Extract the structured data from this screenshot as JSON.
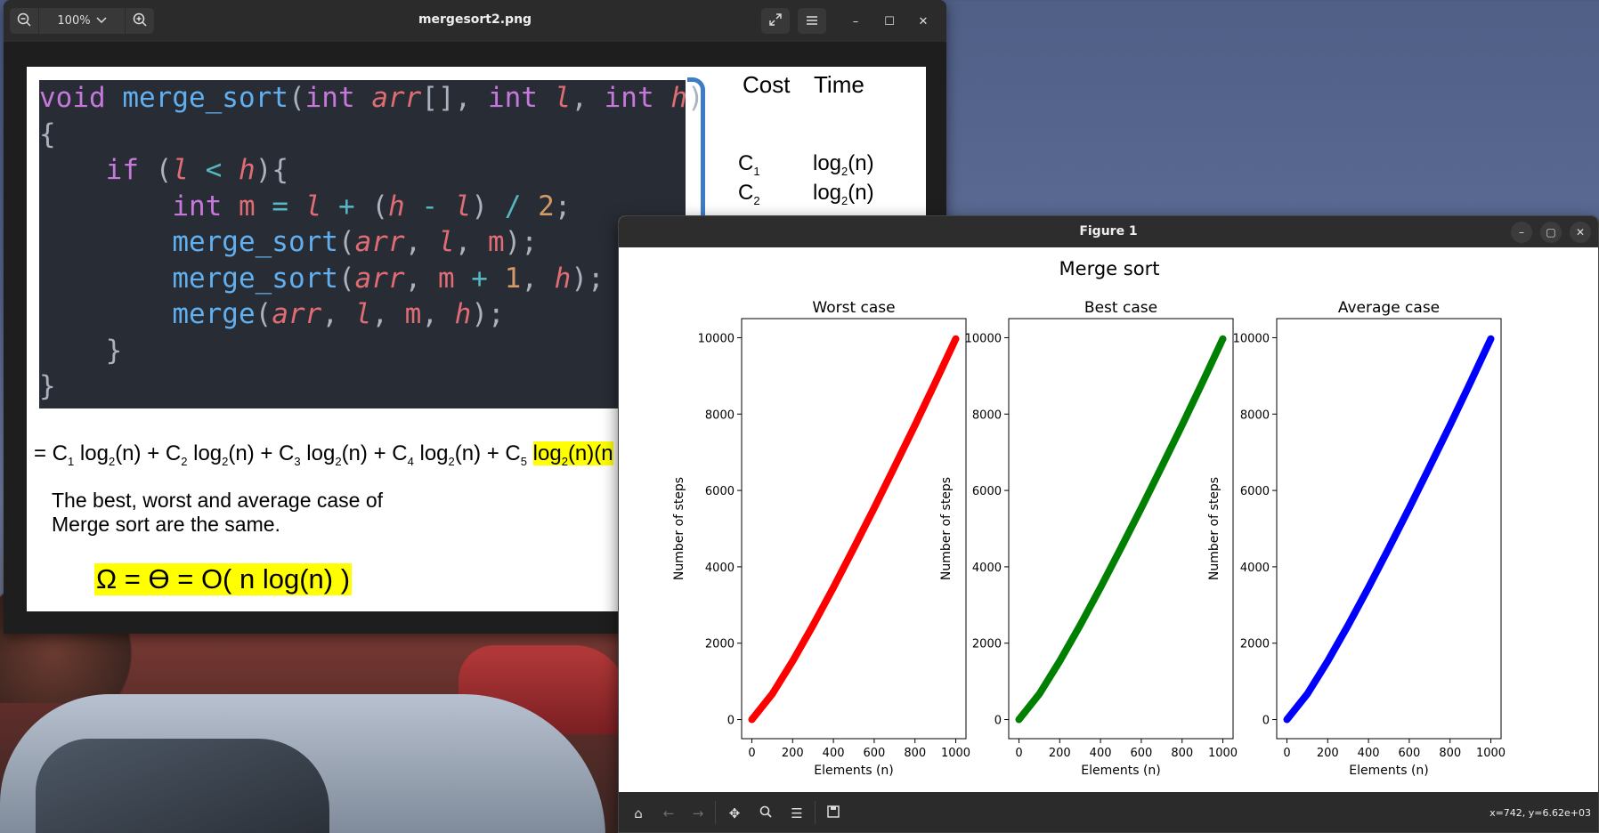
{
  "viewer": {
    "title": "mergesort2.png",
    "zoom": "100%",
    "icons": {
      "zoom_out": "zoom-out-icon",
      "zoom_in": "zoom-in-icon",
      "fullscreen": "fullscreen-icon",
      "menu": "hamburger-menu-icon"
    }
  },
  "slide": {
    "cost_header": "Cost",
    "time_header": "Time",
    "cost_rows": [
      {
        "c": "C",
        "sub": "1",
        "t": "log",
        "tsub": "2",
        "tend": "(n)"
      },
      {
        "c": "C",
        "sub": "2",
        "t": "log",
        "tsub": "2",
        "tend": "(n)"
      }
    ],
    "sum_line": {
      "start": "= C",
      "parts": [
        {
          "sub": "1",
          "text": " log"
        },
        {
          "sub": "2",
          "text": "(n) + C"
        },
        {
          "sub": "2",
          "text": " log"
        },
        {
          "sub": "2",
          "text": "(n) + C"
        },
        {
          "sub": "3",
          "text": " log"
        },
        {
          "sub": "2",
          "text": "(n) + C"
        },
        {
          "sub": "4",
          "text": " log"
        },
        {
          "sub": "2",
          "text": "(n) + C"
        },
        {
          "sub": "5",
          "text": " "
        }
      ],
      "highlight": "log",
      "highlight_sub": "2",
      "highlight_end": "(n)(n"
    },
    "text_line1": "The best, worst and average case of",
    "text_line2": "Merge sort are the same.",
    "big_formula": "Ω = Ө = O( n log(n) )"
  },
  "figure": {
    "title": "Figure 1",
    "coords": "x=742, y=6.62e+03",
    "toolbar_icons": [
      "home-icon",
      "back-arrow-icon",
      "forward-arrow-icon",
      "pan-icon",
      "zoom-icon",
      "configure-subplots-icon",
      "save-icon"
    ]
  },
  "chart_data": [
    {
      "type": "line",
      "suptitle": "Merge sort",
      "title": "Worst case",
      "xlabel": "Elements (n)",
      "ylabel": "Number of steps",
      "color": "#ff0000",
      "xlim": [
        -50,
        1050
      ],
      "ylim": [
        -500,
        10500
      ],
      "xticks": [
        0,
        200,
        400,
        600,
        800,
        1000
      ],
      "yticks": [
        0,
        2000,
        4000,
        6000,
        8000,
        10000
      ],
      "x": [
        0,
        100,
        200,
        300,
        400,
        500,
        600,
        700,
        800,
        900,
        1000
      ],
      "y": [
        0,
        670,
        1530,
        2470,
        3460,
        4490,
        5540,
        6620,
        7710,
        8830,
        9970
      ]
    },
    {
      "type": "line",
      "title": "Best case",
      "xlabel": "Elements (n)",
      "ylabel": "Number of steps",
      "color": "#008000",
      "xlim": [
        -50,
        1050
      ],
      "ylim": [
        -500,
        10500
      ],
      "xticks": [
        0,
        200,
        400,
        600,
        800,
        1000
      ],
      "yticks": [
        0,
        2000,
        4000,
        6000,
        8000,
        10000
      ],
      "x": [
        0,
        100,
        200,
        300,
        400,
        500,
        600,
        700,
        800,
        900,
        1000
      ],
      "y": [
        0,
        670,
        1530,
        2470,
        3460,
        4490,
        5540,
        6620,
        7710,
        8830,
        9970
      ]
    },
    {
      "type": "line",
      "title": "Average case",
      "xlabel": "Elements (n)",
      "ylabel": "Number of steps",
      "color": "#0000ff",
      "xlim": [
        -50,
        1050
      ],
      "ylim": [
        -500,
        10500
      ],
      "xticks": [
        0,
        200,
        400,
        600,
        800,
        1000
      ],
      "yticks": [
        0,
        2000,
        4000,
        6000,
        8000,
        10000
      ],
      "x": [
        0,
        100,
        200,
        300,
        400,
        500,
        600,
        700,
        800,
        900,
        1000
      ],
      "y": [
        0,
        670,
        1530,
        2470,
        3460,
        4490,
        5540,
        6620,
        7710,
        8830,
        9970
      ]
    }
  ]
}
